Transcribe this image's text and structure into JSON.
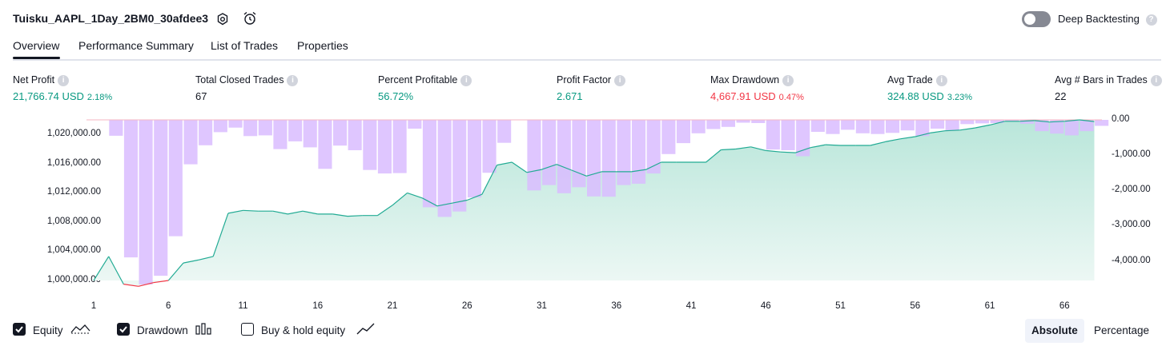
{
  "header": {
    "strategy_name": "Tuisku_AAPL_1Day_2BM0_30afdee3",
    "deep_backtesting_label": "Deep Backtesting",
    "deep_backtesting_on": false
  },
  "tabs": [
    {
      "label": "Overview",
      "active": true
    },
    {
      "label": "Performance Summary",
      "active": false
    },
    {
      "label": "List of Trades",
      "active": false
    },
    {
      "label": "Properties",
      "active": false
    }
  ],
  "metrics": [
    {
      "label": "Net Profit",
      "value": "21,766.74 USD",
      "pct": "2.18%",
      "color": "green"
    },
    {
      "label": "Total Closed Trades",
      "value": "67",
      "pct": "",
      "color": "dark"
    },
    {
      "label": "Percent Profitable",
      "value": "56.72%",
      "pct": "",
      "color": "green"
    },
    {
      "label": "Profit Factor",
      "value": "2.671",
      "pct": "",
      "color": "green"
    },
    {
      "label": "Max Drawdown",
      "value": "4,667.91 USD",
      "pct": "0.47%",
      "color": "red"
    },
    {
      "label": "Avg Trade",
      "value": "324.88 USD",
      "pct": "3.23%",
      "color": "green"
    },
    {
      "label": "Avg # Bars in Trades",
      "value": "22",
      "pct": "",
      "color": "dark"
    }
  ],
  "chart_data": {
    "type": "area",
    "equity": {
      "x": [
        1,
        2,
        3,
        4,
        5,
        6,
        7,
        8,
        9,
        10,
        11,
        12,
        13,
        14,
        15,
        16,
        17,
        18,
        19,
        20,
        21,
        22,
        23,
        24,
        25,
        26,
        27,
        28,
        29,
        30,
        31,
        32,
        33,
        34,
        35,
        36,
        37,
        38,
        39,
        40,
        41,
        42,
        43,
        44,
        45,
        46,
        47,
        48,
        49,
        50,
        51,
        52,
        53,
        54,
        55,
        56,
        57,
        58,
        59,
        60,
        61,
        62,
        63,
        64,
        65,
        66,
        67,
        68
      ],
      "values": [
        1000000,
        1003300,
        999500,
        999200,
        999700,
        1000000,
        1002400,
        1002800,
        1003300,
        1009200,
        1009600,
        1009500,
        1009500,
        1009100,
        1009500,
        1009100,
        1009100,
        1008800,
        1008900,
        1008900,
        1010300,
        1012000,
        1011300,
        1010200,
        1010600,
        1011000,
        1011800,
        1015800,
        1016200,
        1014800,
        1015200,
        1015900,
        1015100,
        1014300,
        1014900,
        1014900,
        1014900,
        1015200,
        1016200,
        1016200,
        1016200,
        1016200,
        1017900,
        1018000,
        1018300,
        1017800,
        1017600,
        1017500,
        1018200,
        1018600,
        1018500,
        1018500,
        1018500,
        1019000,
        1019400,
        1019700,
        1020200,
        1020500,
        1020600,
        1020900,
        1021300,
        1021800,
        1021800,
        1021900,
        1021700,
        1021800,
        1022000,
        1021766.74
      ],
      "ylim": [
        1000000,
        1021766.74
      ],
      "yticks": [
        "1,000,000.00",
        "1,004,000.00",
        "1,008,000.00",
        "1,012,000.00",
        "1,016,000.00",
        "1,020,000.00"
      ]
    },
    "drawdown": {
      "x": [
        1,
        2,
        3,
        4,
        5,
        6,
        7,
        8,
        9,
        10,
        11,
        12,
        13,
        14,
        15,
        16,
        17,
        18,
        19,
        20,
        21,
        22,
        23,
        24,
        25,
        26,
        27,
        28,
        29,
        30,
        31,
        32,
        33,
        34,
        35,
        36,
        37,
        38,
        39,
        40,
        41,
        42,
        43,
        44,
        45,
        46,
        47,
        48,
        49,
        50,
        51,
        52,
        53,
        54,
        55,
        56,
        57,
        58,
        59,
        60,
        61,
        62,
        63,
        64,
        65,
        66,
        67,
        68
      ],
      "values": [
        0,
        -450,
        -3900,
        -4667.91,
        -4420,
        -3300,
        -1260,
        -720,
        -350,
        -220,
        -460,
        -440,
        -830,
        -610,
        -780,
        -1390,
        -730,
        -860,
        -1420,
        -1520,
        -1510,
        -250,
        -2480,
        -2750,
        -2600,
        -2200,
        -1500,
        -650,
        0,
        -2000,
        -1850,
        -2080,
        -1910,
        -2170,
        -2180,
        -1850,
        -1810,
        -1520,
        -970,
        -660,
        -380,
        -260,
        -200,
        -80,
        -90,
        -840,
        -860,
        -1030,
        -340,
        -400,
        -280,
        -380,
        -400,
        -370,
        -300,
        -460,
        -250,
        -300,
        -120,
        -100,
        -90,
        -40,
        -110,
        -320,
        -390,
        -440,
        -320,
        -170
      ],
      "ylim": [
        -4667.91,
        0
      ],
      "yticks": [
        "0.00",
        "-1,000.00",
        "-2,000.00",
        "-3,000.00",
        "-4,000.00"
      ]
    },
    "xticks": [
      "1",
      "6",
      "11",
      "16",
      "21",
      "26",
      "31",
      "36",
      "41",
      "46",
      "51",
      "56",
      "61",
      "66"
    ]
  },
  "legend": {
    "equity_label": "Equity",
    "drawdown_label": "Drawdown",
    "buyhold_label": "Buy & hold equity",
    "equity_checked": true,
    "drawdown_checked": true,
    "buyhold_checked": false
  },
  "mode": {
    "absolute_label": "Absolute",
    "percentage_label": "Percentage",
    "active": "Absolute"
  },
  "colors": {
    "green": "#089981",
    "red": "#f23645",
    "drawdown_fill": "#d9bcff",
    "equity_line": "#22ab94",
    "equity_area_top": "#b9e6da"
  }
}
